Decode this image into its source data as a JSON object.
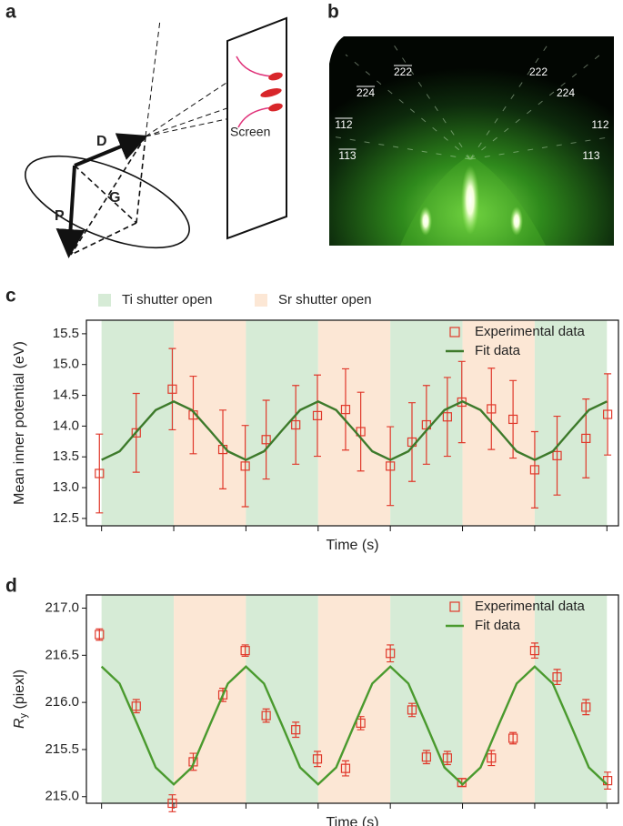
{
  "figure": {
    "panel_labels": [
      "a",
      "b",
      "c",
      "d"
    ],
    "diagram_labels": [
      "D",
      "P",
      "G",
      "Screen"
    ],
    "rheed_labels": [
      {
        "text": "222",
        "overline": true
      },
      {
        "text": "222",
        "overline": false
      },
      {
        "text": "224",
        "overline": true
      },
      {
        "text": "224",
        "overline": false
      },
      {
        "text": "112",
        "overline": true
      },
      {
        "text": "112",
        "overline": false
      },
      {
        "text": "113",
        "overline": true
      },
      {
        "text": "113",
        "overline": false
      }
    ]
  },
  "chart_data": [
    {
      "type": "line",
      "xlabel": "Time (s)",
      "ylabel": "Mean inner potential (eV)",
      "xlim": [
        -0.21,
        7.16
      ],
      "xticks": [
        0,
        1,
        2,
        3,
        4,
        5,
        6,
        7
      ],
      "ylim": [
        12.38,
        15.72
      ],
      "yticks": [
        12.5,
        {
          "value": 13,
          "label": "13.0"
        },
        13.5,
        {
          "value": 14,
          "label": "14.0"
        },
        14.5,
        {
          "value": 15,
          "label": "15.0"
        },
        15.5
      ],
      "legend": "upper right",
      "shutter_edges": [
        0,
        1,
        2,
        3,
        4,
        5,
        6,
        7
      ],
      "shutters": [
        {
          "name": "Ti shutter open",
          "color": "#d6ebd6"
        },
        {
          "name": "Sr shutter open",
          "color": "#fce7d5"
        }
      ],
      "series": [
        {
          "name": "Experimental data",
          "style": "markers",
          "color": "#e0392b",
          "x": [
            -0.03,
            0.48,
            0.98,
            1.27,
            1.68,
            1.99,
            2.28,
            2.69,
            2.99,
            3.38,
            3.59,
            4.0,
            4.3,
            4.5,
            4.79,
            4.99,
            5.4,
            5.7,
            6.0,
            6.31,
            6.71,
            7.01
          ],
          "values": [
            13.23,
            13.89,
            14.6,
            14.18,
            13.62,
            13.35,
            13.78,
            14.02,
            14.17,
            14.27,
            13.91,
            13.35,
            13.74,
            14.02,
            14.15,
            14.39,
            14.28,
            14.11,
            13.29,
            13.52,
            13.8,
            14.19
          ],
          "errors": [
            0.64,
            0.64,
            0.66,
            0.63,
            0.64,
            0.66,
            0.64,
            0.64,
            0.66,
            0.66,
            0.64,
            0.64,
            0.64,
            0.64,
            0.64,
            0.66,
            0.66,
            0.63,
            0.62,
            0.64,
            0.64,
            0.66
          ]
        },
        {
          "name": "Fit data",
          "style": "line",
          "color": "#3d7a2b",
          "x": [
            0,
            0.25,
            0.5,
            0.75,
            1,
            1.25,
            1.5,
            1.75,
            2,
            2.25,
            2.5,
            2.75,
            3,
            3.25,
            3.5,
            3.75,
            4,
            4.25,
            4.5,
            4.75,
            5,
            5.25,
            5.5,
            5.75,
            6,
            6.25,
            6.5,
            6.75,
            7
          ],
          "values": [
            13.45,
            13.59,
            13.93,
            14.26,
            14.4,
            14.26,
            13.93,
            13.59,
            13.45,
            13.59,
            13.93,
            14.26,
            14.4,
            14.26,
            13.93,
            13.59,
            13.45,
            13.59,
            13.93,
            14.26,
            14.4,
            14.26,
            13.93,
            13.59,
            13.45,
            13.59,
            13.93,
            14.26,
            14.4
          ]
        }
      ]
    },
    {
      "type": "line",
      "xlabel": "Time (s)",
      "ylabel": {
        "base": "R",
        "sub": "y",
        "rest": " (piexl)"
      },
      "xlim": [
        -0.21,
        7.16
      ],
      "xticks": [
        0,
        1,
        2,
        3,
        4,
        5,
        6,
        7
      ],
      "ylim": [
        214.93,
        217.14
      ],
      "yticks": [
        {
          "value": 215,
          "label": "215.0"
        },
        215.5,
        {
          "value": 216,
          "label": "216.0"
        },
        216.5,
        {
          "value": 217,
          "label": "217.0"
        }
      ],
      "legend": "upper right",
      "shutter_edges": [
        0,
        1,
        2,
        3,
        4,
        5,
        6,
        7
      ],
      "shutters": [
        {
          "color": "#d6ebd6"
        },
        {
          "color": "#fce7d5"
        }
      ],
      "series": [
        {
          "name": "Experimental data",
          "style": "markers",
          "color": "#e0392b",
          "x": [
            -0.03,
            0.48,
            0.98,
            1.27,
            1.68,
            1.99,
            2.28,
            2.69,
            2.99,
            3.38,
            3.59,
            4.0,
            4.3,
            4.5,
            4.79,
            4.99,
            5.4,
            5.7,
            6.0,
            6.31,
            6.71,
            7.01
          ],
          "values": [
            216.72,
            215.96,
            214.93,
            215.37,
            216.08,
            216.55,
            215.86,
            215.71,
            215.4,
            215.3,
            215.78,
            216.52,
            215.92,
            215.42,
            215.41,
            215.15,
            215.41,
            215.62,
            216.55,
            216.27,
            215.95,
            215.17
          ],
          "errors": [
            0.06,
            0.07,
            0.09,
            0.09,
            0.07,
            0.06,
            0.07,
            0.08,
            0.08,
            0.08,
            0.07,
            0.09,
            0.07,
            0.07,
            0.07,
            0.04,
            0.08,
            0.06,
            0.08,
            0.08,
            0.08,
            0.09
          ]
        },
        {
          "name": "Fit data",
          "style": "line",
          "color": "#4a9a2e",
          "x": [
            0,
            0.25,
            0.5,
            0.75,
            1,
            1.25,
            1.5,
            1.75,
            2,
            2.25,
            2.5,
            2.75,
            3,
            3.25,
            3.5,
            3.75,
            4,
            4.25,
            4.5,
            4.75,
            5,
            5.25,
            5.5,
            5.75,
            6,
            6.25,
            6.5,
            6.75,
            7
          ],
          "values": [
            216.38,
            216.2,
            215.76,
            215.31,
            215.13,
            215.31,
            215.76,
            216.2,
            216.38,
            216.2,
            215.76,
            215.31,
            215.13,
            215.31,
            215.76,
            216.2,
            216.38,
            216.2,
            215.76,
            215.31,
            215.13,
            215.31,
            215.76,
            216.2,
            216.38,
            216.2,
            215.76,
            215.31,
            215.13
          ]
        }
      ]
    }
  ]
}
